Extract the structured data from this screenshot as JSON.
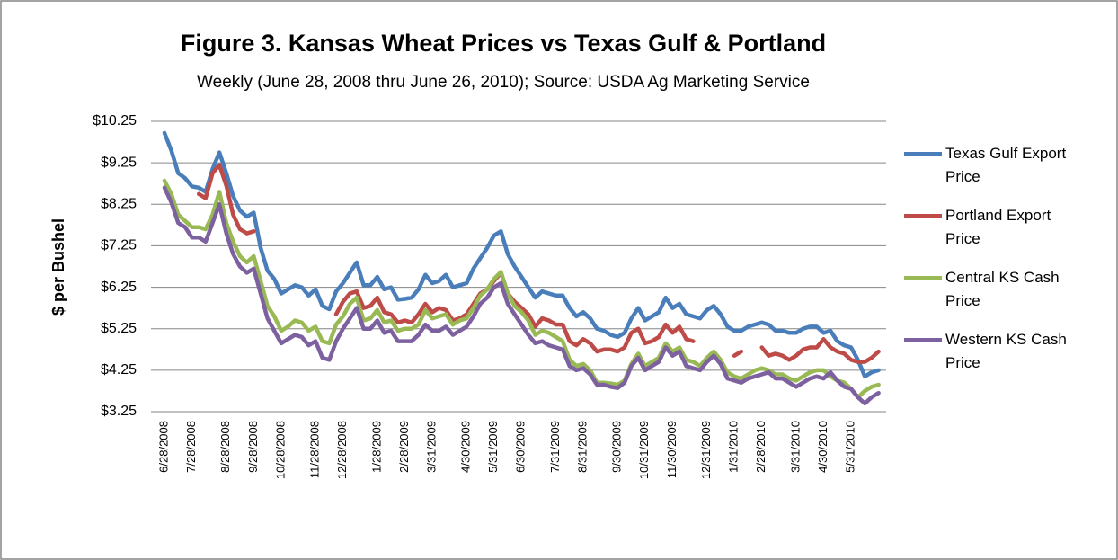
{
  "chart_data": {
    "type": "line",
    "title": "Figure 3. Kansas Wheat Prices vs Texas Gulf & Portland",
    "subtitle": "Weekly (June 28, 2008 thru June 26, 2010); Source: USDA Ag Marketing Service",
    "y_label": "$ per Bushel",
    "legend": "right",
    "grid": true,
    "ylim": [
      3.25,
      10.25
    ],
    "yticks": [
      {
        "value": 3.25,
        "label": "$3.25"
      },
      {
        "value": 4.25,
        "label": "$4.25"
      },
      {
        "value": 5.25,
        "label": "$5.25"
      },
      {
        "value": 6.25,
        "label": "$6.25"
      },
      {
        "value": 7.25,
        "label": "$7.25"
      },
      {
        "value": 8.25,
        "label": "$8.25"
      },
      {
        "value": 9.25,
        "label": "$9.25"
      },
      {
        "value": 10.25,
        "label": "$10.25"
      }
    ],
    "categories": [
      "6/28/2008",
      null,
      null,
      null,
      "7/28/2008",
      null,
      null,
      null,
      null,
      "8/28/2008",
      null,
      null,
      null,
      "9/28/2008",
      null,
      null,
      null,
      "10/28/2008",
      null,
      null,
      null,
      null,
      "11/28/2008",
      null,
      null,
      null,
      "12/28/2008",
      null,
      null,
      null,
      null,
      "1/28/2009",
      null,
      null,
      null,
      "2/28/2009",
      null,
      null,
      null,
      "3/31/2009",
      null,
      null,
      null,
      null,
      "4/30/2009",
      null,
      null,
      null,
      "5/31/2009",
      null,
      null,
      null,
      "6/30/2009",
      null,
      null,
      null,
      null,
      "7/31/2009",
      null,
      null,
      null,
      "8/31/2009",
      null,
      null,
      null,
      null,
      "9/30/2009",
      null,
      null,
      null,
      "10/31/2009",
      null,
      null,
      null,
      "11/30/2009",
      null,
      null,
      null,
      null,
      "12/31/2009",
      null,
      null,
      null,
      "1/31/2010",
      null,
      null,
      null,
      "2/28/2010",
      null,
      null,
      null,
      null,
      "3/31/2010",
      null,
      null,
      null,
      "4/30/2010",
      null,
      null,
      null,
      "5/31/2010",
      null,
      null,
      null,
      null
    ],
    "series": [
      {
        "name": "Texas Gulf Export Price",
        "color": "#4a7ebb",
        "values": [
          9.97,
          9.55,
          9.0,
          8.88,
          8.68,
          8.65,
          8.55,
          9.1,
          9.5,
          9.0,
          8.45,
          8.1,
          7.95,
          8.05,
          7.2,
          6.65,
          6.45,
          6.1,
          6.2,
          6.3,
          6.25,
          6.05,
          6.2,
          5.8,
          5.72,
          6.15,
          6.35,
          6.6,
          6.85,
          6.3,
          6.3,
          6.5,
          6.2,
          6.25,
          5.95,
          5.97,
          6.0,
          6.2,
          6.55,
          6.35,
          6.4,
          6.55,
          6.25,
          6.3,
          6.35,
          6.7,
          6.95,
          7.2,
          7.5,
          7.6,
          7.05,
          6.75,
          6.5,
          6.25,
          6.0,
          6.15,
          6.1,
          6.05,
          6.05,
          5.75,
          5.55,
          5.65,
          5.5,
          5.25,
          5.2,
          5.1,
          5.05,
          5.15,
          5.5,
          5.75,
          5.45,
          5.55,
          5.65,
          6.0,
          5.75,
          5.85,
          5.6,
          5.55,
          5.5,
          5.7,
          5.8,
          5.6,
          5.3,
          5.2,
          5.2,
          5.3,
          5.35,
          5.4,
          5.35,
          5.2,
          5.2,
          5.15,
          5.15,
          5.25,
          5.3,
          5.3,
          5.15,
          5.2,
          4.95,
          4.85,
          4.8,
          4.5,
          4.1,
          4.2,
          4.25
        ]
      },
      {
        "name": "Portland Export Price",
        "color": "#be4b48",
        "values": [
          null,
          null,
          null,
          null,
          null,
          8.5,
          8.4,
          9.0,
          9.2,
          8.7,
          8.0,
          7.65,
          7.55,
          7.6,
          null,
          null,
          null,
          null,
          null,
          null,
          null,
          null,
          null,
          null,
          null,
          5.6,
          5.9,
          6.1,
          6.15,
          5.75,
          5.8,
          6.0,
          5.65,
          5.6,
          5.4,
          5.45,
          5.4,
          5.6,
          5.85,
          5.65,
          5.75,
          5.7,
          5.45,
          5.5,
          5.6,
          5.85,
          6.1,
          6.2,
          6.4,
          6.6,
          6.1,
          5.9,
          5.75,
          5.6,
          5.3,
          5.5,
          5.45,
          5.35,
          5.35,
          4.95,
          4.85,
          5.0,
          4.9,
          4.7,
          4.75,
          4.75,
          4.7,
          4.8,
          5.15,
          5.25,
          4.9,
          4.95,
          5.05,
          5.35,
          5.15,
          5.3,
          5.0,
          4.95,
          null,
          null,
          null,
          null,
          null,
          4.6,
          4.7,
          null,
          null,
          4.8,
          4.6,
          4.65,
          4.6,
          4.5,
          4.6,
          4.75,
          4.8,
          4.8,
          5.0,
          4.8,
          4.7,
          4.65,
          4.5,
          4.45,
          4.45,
          4.55,
          4.7
        ]
      },
      {
        "name": "Central KS Cash Price",
        "color": "#98b954",
        "values": [
          8.82,
          8.5,
          8.0,
          7.85,
          7.7,
          7.7,
          7.65,
          8.0,
          8.55,
          7.8,
          7.35,
          7.0,
          6.85,
          7.0,
          6.4,
          5.8,
          5.55,
          5.2,
          5.3,
          5.45,
          5.4,
          5.2,
          5.3,
          4.95,
          4.9,
          5.35,
          5.55,
          5.85,
          6.0,
          5.45,
          5.5,
          5.7,
          5.4,
          5.45,
          5.2,
          5.25,
          5.25,
          5.35,
          5.7,
          5.5,
          5.55,
          5.6,
          5.35,
          5.45,
          5.5,
          5.75,
          6.05,
          6.2,
          6.45,
          6.62,
          6.1,
          5.8,
          5.65,
          5.45,
          5.1,
          5.2,
          5.15,
          5.05,
          4.95,
          4.5,
          4.35,
          4.4,
          4.25,
          3.95,
          3.95,
          3.93,
          3.9,
          4.0,
          4.4,
          4.65,
          4.35,
          4.45,
          4.55,
          4.9,
          4.7,
          4.8,
          4.5,
          4.45,
          4.35,
          4.55,
          4.7,
          4.5,
          4.2,
          4.1,
          4.05,
          4.15,
          4.25,
          4.3,
          4.25,
          4.15,
          4.15,
          4.05,
          4.0,
          4.1,
          4.2,
          4.25,
          4.25,
          4.1,
          4.0,
          3.95,
          3.8,
          3.6,
          3.75,
          3.85,
          3.9
        ]
      },
      {
        "name": "Western KS Cash Price",
        "color": "#7d60a0",
        "values": [
          8.65,
          8.3,
          7.8,
          7.7,
          7.45,
          7.45,
          7.35,
          7.8,
          8.25,
          7.55,
          7.05,
          6.75,
          6.6,
          6.7,
          6.1,
          5.5,
          5.2,
          4.9,
          5.0,
          5.1,
          5.05,
          4.85,
          4.95,
          4.55,
          4.5,
          4.95,
          5.25,
          5.5,
          5.75,
          5.25,
          5.25,
          5.45,
          5.15,
          5.2,
          4.95,
          4.95,
          4.95,
          5.1,
          5.35,
          5.2,
          5.2,
          5.3,
          5.1,
          5.2,
          5.3,
          5.55,
          5.85,
          6.0,
          6.25,
          6.35,
          5.85,
          5.6,
          5.35,
          5.1,
          4.9,
          4.95,
          4.85,
          4.8,
          4.75,
          4.35,
          4.25,
          4.3,
          4.15,
          3.9,
          3.9,
          3.85,
          3.82,
          3.95,
          4.35,
          4.55,
          4.25,
          4.35,
          4.45,
          4.8,
          4.6,
          4.7,
          4.35,
          4.3,
          4.25,
          4.45,
          4.6,
          4.4,
          4.05,
          4.0,
          3.95,
          4.05,
          4.1,
          4.15,
          4.2,
          4.05,
          4.05,
          3.95,
          3.85,
          3.95,
          4.05,
          4.1,
          4.05,
          4.2,
          4.0,
          3.85,
          3.8,
          3.6,
          3.45,
          3.6,
          3.7
        ]
      }
    ]
  }
}
